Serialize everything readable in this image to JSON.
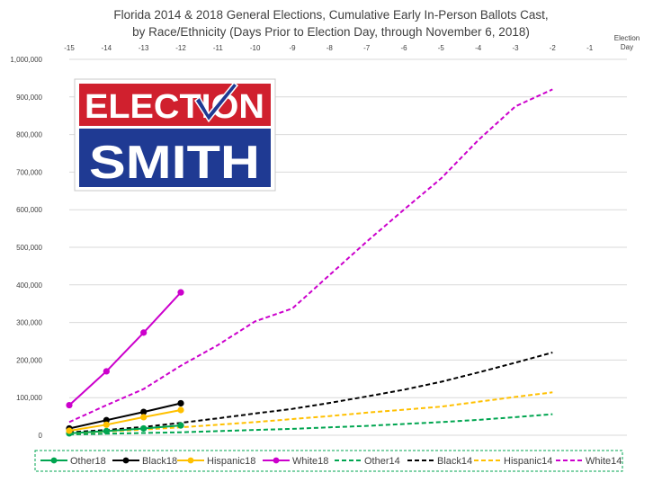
{
  "chart_data": {
    "type": "line",
    "title_lines": [
      "Florida 2014 & 2018 General Elections, Cumulative Early In-Person Ballots Cast,",
      "by Race/Ethnicity (Days Prior to Election Day, through November 6, 2018)"
    ],
    "x_tick_labels": [
      "-15",
      "-14",
      "-13",
      "-12",
      "-11",
      "-10",
      "-9",
      "-8",
      "-7",
      "-6",
      "-5",
      "-4",
      "-3",
      "-2",
      "-1",
      "Election Day"
    ],
    "x_positions": [
      -15,
      -14,
      -13,
      -12,
      -11,
      -10,
      -9,
      -8,
      -7,
      -6,
      -5,
      -4,
      -3,
      -2,
      -1,
      0
    ],
    "xlim": [
      -15,
      0
    ],
    "ylim": [
      0,
      1000000
    ],
    "y_ticks": [
      0,
      100000,
      200000,
      300000,
      400000,
      500000,
      600000,
      700000,
      800000,
      900000,
      1000000
    ],
    "y_tick_labels": [
      "0",
      "100,000",
      "200,000",
      "300,000",
      "400,000",
      "500,000",
      "600,000",
      "700,000",
      "800,000",
      "900,000",
      "1,000,000"
    ],
    "x_axis_position": "top",
    "gridlines": "horizontal",
    "legend_position": "bottom",
    "series": [
      {
        "name": "Other18",
        "color": "#00a550",
        "dash": "solid",
        "markers": true,
        "x": [
          -15,
          -14,
          -13,
          -12
        ],
        "values": [
          5000,
          11000,
          18000,
          26000
        ]
      },
      {
        "name": "Black18",
        "color": "#000000",
        "dash": "solid",
        "markers": true,
        "x": [
          -15,
          -14,
          -13,
          -12
        ],
        "values": [
          18000,
          40000,
          62000,
          85000
        ]
      },
      {
        "name": "Hispanic18",
        "color": "#ffc000",
        "dash": "solid",
        "markers": true,
        "x": [
          -15,
          -14,
          -13,
          -12
        ],
        "values": [
          12000,
          28000,
          48000,
          67000
        ]
      },
      {
        "name": "White18",
        "color": "#cc00cc",
        "dash": "solid",
        "markers": true,
        "x": [
          -15,
          -14,
          -13,
          -12
        ],
        "values": [
          80000,
          170000,
          273000,
          380000
        ]
      },
      {
        "name": "Other14",
        "color": "#00a550",
        "dash": "dashed",
        "markers": false,
        "x": [
          -15,
          -14,
          -13,
          -12,
          -11,
          -10,
          -9,
          -8,
          -7,
          -6,
          -5,
          -4,
          -3,
          -2
        ],
        "values": [
          2000,
          4000,
          6000,
          8000,
          11000,
          14000,
          17000,
          21000,
          25000,
          30000,
          35000,
          41000,
          48000,
          56000
        ]
      },
      {
        "name": "Black14",
        "color": "#000000",
        "dash": "dashed",
        "markers": false,
        "x": [
          -15,
          -14,
          -13,
          -12,
          -11,
          -10,
          -9,
          -8,
          -7,
          -6,
          -5,
          -4,
          -3,
          -2
        ],
        "values": [
          8000,
          14000,
          22000,
          33000,
          45000,
          58000,
          70000,
          86000,
          103000,
          121000,
          142000,
          167000,
          193000,
          220000
        ]
      },
      {
        "name": "Hispanic14",
        "color": "#ffc000",
        "dash": "dashed",
        "markers": false,
        "x": [
          -15,
          -14,
          -13,
          -12,
          -11,
          -10,
          -9,
          -8,
          -7,
          -6,
          -5,
          -4,
          -3,
          -2
        ],
        "values": [
          5000,
          10000,
          15000,
          21000,
          28000,
          35000,
          43000,
          51000,
          60000,
          68000,
          76000,
          89000,
          102000,
          114000
        ]
      },
      {
        "name": "White14",
        "color": "#cc00cc",
        "dash": "dashed",
        "markers": false,
        "x": [
          -15,
          -14,
          -13,
          -12,
          -11,
          -10,
          -9,
          -8,
          -7,
          -6,
          -5,
          -4,
          -3,
          -2
        ],
        "values": [
          35000,
          80000,
          123000,
          185000,
          240000,
          303000,
          337000,
          426000,
          515000,
          600000,
          683000,
          785000,
          875000,
          920000
        ]
      }
    ]
  },
  "logo": {
    "top_text": "ELECTION",
    "bottom_text": "SMITH",
    "top_color": "#d0202e",
    "bottom_color": "#1f3a93",
    "check_color": "#1f3a93"
  }
}
